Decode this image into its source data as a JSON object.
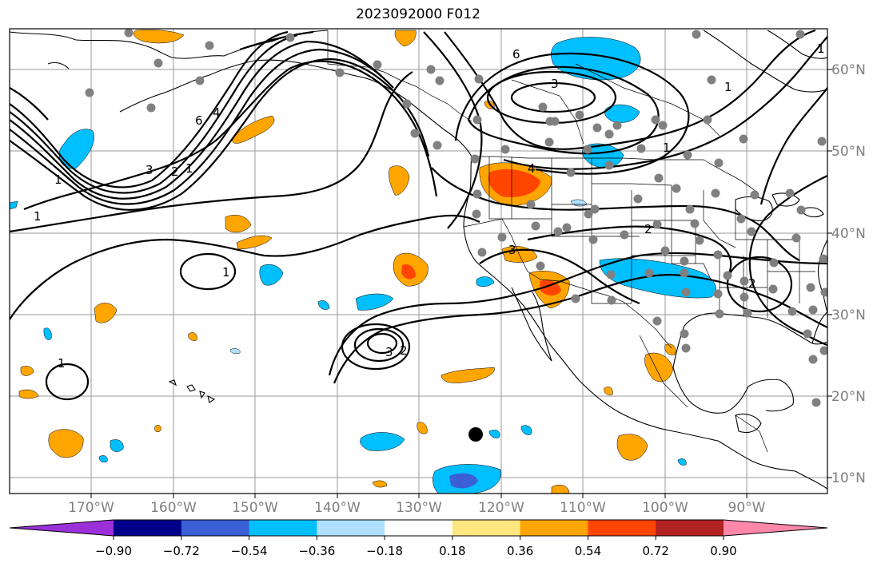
{
  "title": "2023092000 F012",
  "latitude_labels": [
    "60°N",
    "50°N",
    "40°N",
    "30°N",
    "20°N",
    "10°N"
  ],
  "longitude_labels": [
    "170°W",
    "160°W",
    "150°W",
    "140°W",
    "130°W",
    "120°W",
    "110°W",
    "100°W",
    "90°W"
  ],
  "colorbar": {
    "tick_labels": [
      "−0.90",
      "−0.72",
      "−0.54",
      "−0.36",
      "−0.18",
      "0.18",
      "0.36",
      "0.54",
      "0.72",
      "0.90"
    ],
    "colors": [
      "#9b30d9",
      "#00008b",
      "#3a5fd6",
      "#00bfff",
      "#b0e0ff",
      "#ffffff",
      "#ffe680",
      "#ffa500",
      "#ff4500",
      "#b22222",
      "#ff88aa"
    ]
  },
  "contour_labels": [
    "6",
    "3",
    "1",
    "6",
    "4",
    "3",
    "2",
    "1",
    "1",
    "1",
    "1",
    "2",
    "3",
    "4",
    "3",
    "2",
    "1",
    "2",
    "1",
    "1"
  ]
}
